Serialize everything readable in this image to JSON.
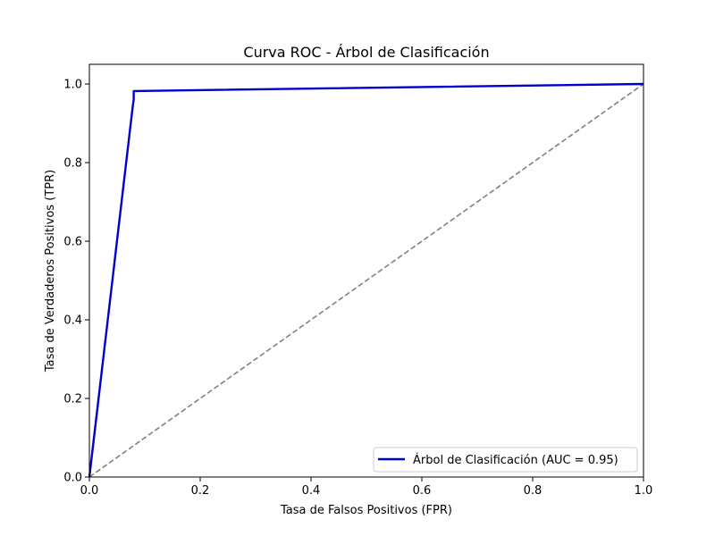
{
  "chart_data": {
    "type": "line",
    "title": "Curva ROC - Árbol de Clasificación",
    "xlabel": "Tasa de Falsos Positivos (FPR)",
    "ylabel": "Tasa de Verdaderos Positivos (TPR)",
    "xlim": [
      0.0,
      1.0
    ],
    "ylim": [
      0.0,
      1.05
    ],
    "xticks": [
      0.0,
      0.2,
      0.4,
      0.6,
      0.8,
      1.0
    ],
    "yticks": [
      0.0,
      0.2,
      0.4,
      0.6,
      0.8,
      1.0
    ],
    "xtick_labels": [
      "0.0",
      "0.2",
      "0.4",
      "0.6",
      "0.8",
      "1.0"
    ],
    "ytick_labels": [
      "0.0",
      "0.2",
      "0.4",
      "0.6",
      "0.8",
      "1.0"
    ],
    "grid": false,
    "legend_position": "lower-right",
    "series": [
      {
        "name": "Árbol de Clasificación (AUC = 0.95)",
        "color": "#0000cc",
        "style": "solid",
        "x": [
          0.0,
          0.078,
          0.08,
          0.08,
          1.0
        ],
        "y": [
          0.0,
          0.94,
          0.96,
          0.982,
          1.0
        ]
      },
      {
        "color": "#808080",
        "style": "dashed",
        "x": [
          0.0,
          1.0
        ],
        "y": [
          0.0,
          1.0
        ]
      }
    ]
  }
}
